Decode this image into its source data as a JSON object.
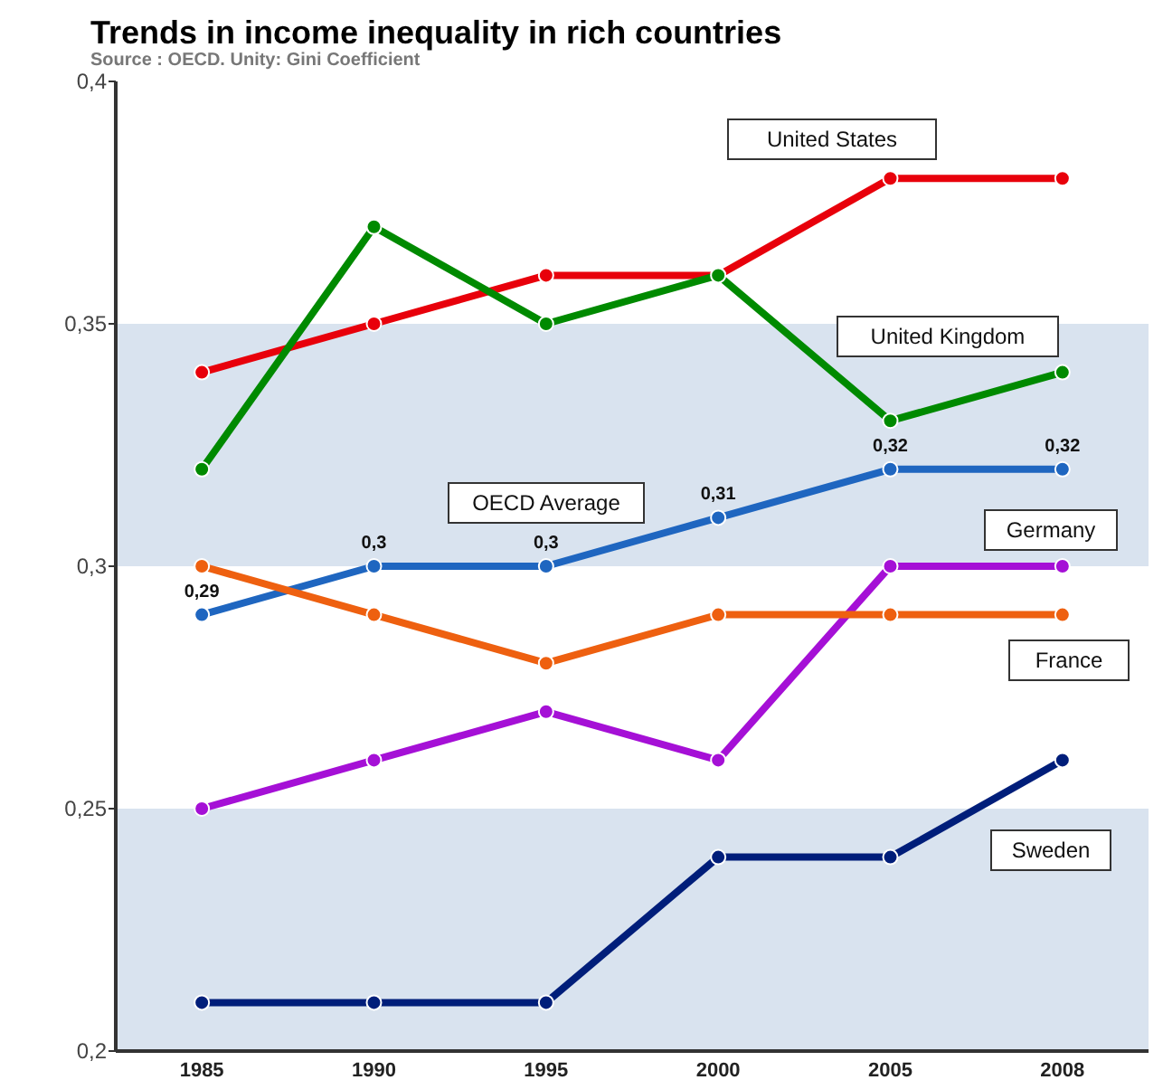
{
  "chart_data": {
    "type": "line",
    "title": "Trends in income inequality in rich countries",
    "subtitle": "Source : OECD. Unity: Gini Coefficient",
    "categories": [
      "1985",
      "1990",
      "1995",
      "2000",
      "2005",
      "2008"
    ],
    "ylim": [
      0.2,
      0.4
    ],
    "yticks": [
      {
        "value": 0.2,
        "label": "0,2"
      },
      {
        "value": 0.25,
        "label": "0,25"
      },
      {
        "value": 0.3,
        "label": "0,3"
      },
      {
        "value": 0.35,
        "label": "0,35"
      },
      {
        "value": 0.4,
        "label": "0,4"
      }
    ],
    "bands": [
      {
        "axis": "y",
        "from": 0.3,
        "to": 0.35,
        "color": "#d9e3ef"
      },
      {
        "axis": "y",
        "from": 0.2,
        "to": 0.25,
        "color": "#d9e3ef"
      }
    ],
    "grid": false,
    "legend": false,
    "marker": "circle",
    "line_style": "solid",
    "series": [
      {
        "name": "United States",
        "color": "#e8000b",
        "values": [
          0.34,
          0.35,
          0.36,
          0.36,
          0.38,
          0.38
        ]
      },
      {
        "name": "United Kingdom",
        "color": "#008a00",
        "values": [
          0.32,
          0.37,
          0.35,
          0.36,
          0.33,
          0.34
        ]
      },
      {
        "name": "OECD Average",
        "color": "#1f66c0",
        "values": [
          0.29,
          0.3,
          0.3,
          0.31,
          0.32,
          0.32
        ],
        "value_labels": [
          "0,29",
          "0,3",
          "0,3",
          "0,31",
          "0,32",
          "0,32"
        ]
      },
      {
        "name": "Germany",
        "color": "#a510d6",
        "values": [
          0.25,
          0.26,
          0.27,
          0.26,
          0.3,
          0.3
        ]
      },
      {
        "name": "France",
        "color": "#ee6010",
        "values": [
          0.3,
          0.29,
          0.28,
          0.29,
          0.29,
          0.29
        ]
      },
      {
        "name": "Sweden",
        "color": "#001e7a",
        "values": [
          0.21,
          0.21,
          0.21,
          0.24,
          0.24,
          0.26
        ]
      }
    ]
  }
}
